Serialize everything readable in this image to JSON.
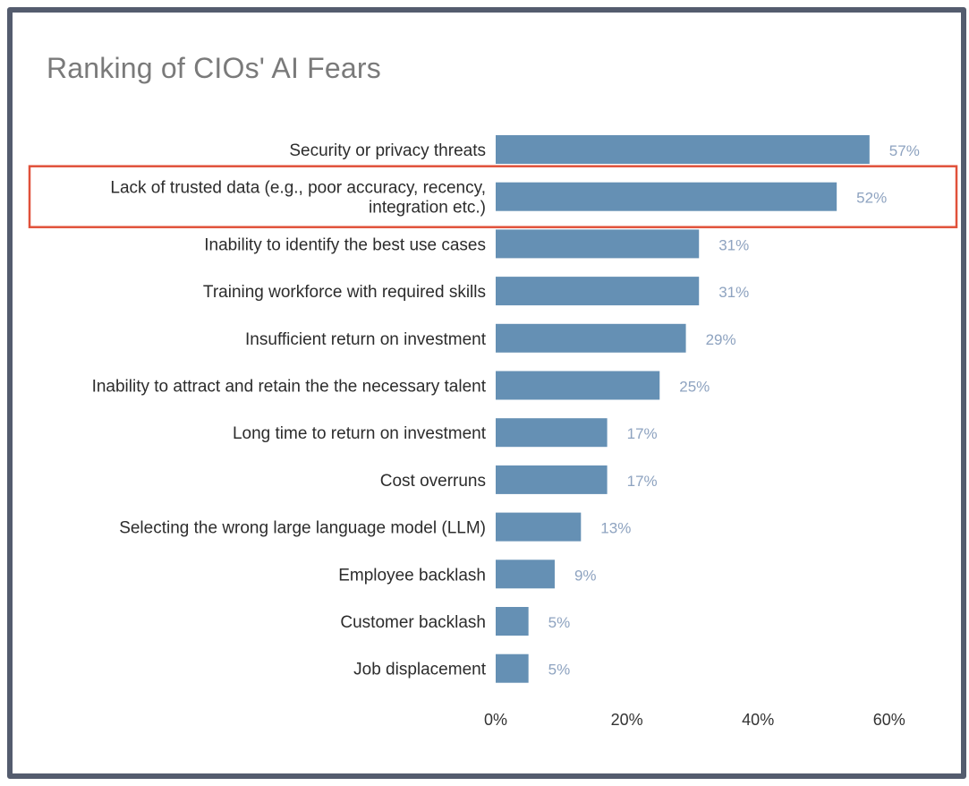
{
  "chart_data": {
    "type": "bar",
    "orientation": "horizontal",
    "title": "Ranking of CIOs' AI Fears",
    "xlabel": "",
    "ylabel": "",
    "xlim": [
      0,
      60
    ],
    "grid": false,
    "categories": [
      [
        "Security or privacy threats"
      ],
      [
        "Lack of trusted data (e.g., poor accuracy, recency,",
        "integration etc.)"
      ],
      [
        "Inability to identify the best use cases"
      ],
      [
        "Training workforce with required skills"
      ],
      [
        "Insufficient return on investment"
      ],
      [
        "Inability to attract and retain the the necessary talent"
      ],
      [
        "Long time to return on investment"
      ],
      [
        "Cost overruns"
      ],
      [
        "Selecting the wrong large language model (LLM)"
      ],
      [
        "Employee backlash"
      ],
      [
        "Customer backlash"
      ],
      [
        "Job displacement"
      ]
    ],
    "values": [
      57,
      52,
      31,
      31,
      29,
      25,
      17,
      17,
      13,
      9,
      5,
      5
    ],
    "value_labels": [
      "57%",
      "52%",
      "31%",
      "31%",
      "29%",
      "25%",
      "17%",
      "17%",
      "13%",
      "9%",
      "5%",
      "5%"
    ],
    "x_ticks": [
      0,
      20,
      40,
      60
    ],
    "x_tick_labels": [
      "0%",
      "20%",
      "40%",
      "60%"
    ],
    "bar_color": "#6590b4",
    "highlight": {
      "category_index": 1,
      "color": "#e0513a"
    }
  }
}
